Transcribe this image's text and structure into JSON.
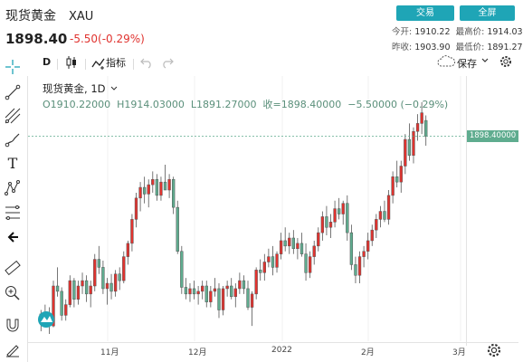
{
  "header": {
    "name": "现货黄金",
    "symbol": "XAU",
    "price": "1898.40",
    "change": "-5.50(-0.29%)",
    "trade_button": "交易",
    "fullscreen_button": "全屏",
    "stats": {
      "open_label": "今开:",
      "open_value": "1910.22",
      "high_label": "最高价:",
      "high_value": "1914.03",
      "prev_close_label": "昨收:",
      "prev_close_value": "1903.90",
      "low_label": "最低价:",
      "low_value": "1891.27"
    }
  },
  "toolbar": {
    "interval": "D",
    "indicators": "指标",
    "save": "保存"
  },
  "legend": {
    "symbol": "现货黄金",
    "interval": "1D",
    "open": "O1910.22000",
    "high": "H1914.03000",
    "low": "L1891.27000",
    "close": "收=1898.40000",
    "change": "−5.50000 (−0.29%)"
  },
  "price_tag": "1898.40000",
  "x_labels": [
    "11月",
    "12月",
    "2022",
    "2月",
    "3月"
  ],
  "colors": {
    "up": "#e0332f",
    "down": "#5fac8f",
    "accent": "#1fa5b6"
  },
  "chart_data": {
    "type": "candlestick",
    "ylim": [
      1750,
      1930
    ],
    "current_close": 1898.4,
    "candles": [
      [
        1760,
        1768,
        1752,
        1765
      ],
      [
        1765,
        1772,
        1758,
        1762
      ],
      [
        1762,
        1770,
        1750,
        1756
      ],
      [
        1756,
        1790,
        1755,
        1786
      ],
      [
        1786,
        1800,
        1778,
        1782
      ],
      [
        1782,
        1785,
        1760,
        1764
      ],
      [
        1764,
        1776,
        1760,
        1772
      ],
      [
        1772,
        1794,
        1770,
        1790
      ],
      [
        1790,
        1792,
        1770,
        1776
      ],
      [
        1776,
        1790,
        1772,
        1786
      ],
      [
        1786,
        1796,
        1780,
        1790
      ],
      [
        1790,
        1794,
        1774,
        1780
      ],
      [
        1780,
        1790,
        1770,
        1786
      ],
      [
        1786,
        1810,
        1782,
        1806
      ],
      [
        1806,
        1816,
        1795,
        1800
      ],
      [
        1800,
        1805,
        1780,
        1784
      ],
      [
        1784,
        1792,
        1772,
        1788
      ],
      [
        1788,
        1795,
        1776,
        1782
      ],
      [
        1782,
        1798,
        1778,
        1795
      ],
      [
        1795,
        1800,
        1783,
        1790
      ],
      [
        1790,
        1812,
        1788,
        1808
      ],
      [
        1808,
        1820,
        1802,
        1818
      ],
      [
        1818,
        1840,
        1812,
        1836
      ],
      [
        1836,
        1856,
        1830,
        1852
      ],
      [
        1852,
        1864,
        1842,
        1860
      ],
      [
        1860,
        1868,
        1848,
        1855
      ],
      [
        1855,
        1866,
        1845,
        1862
      ],
      [
        1862,
        1872,
        1856,
        1866
      ],
      [
        1866,
        1870,
        1850,
        1854
      ],
      [
        1854,
        1868,
        1850,
        1864
      ],
      [
        1864,
        1877,
        1858,
        1858
      ],
      [
        1858,
        1870,
        1852,
        1866
      ],
      [
        1866,
        1868,
        1840,
        1845
      ],
      [
        1845,
        1850,
        1810,
        1812
      ],
      [
        1812,
        1816,
        1780,
        1785
      ],
      [
        1785,
        1792,
        1776,
        1780
      ],
      [
        1780,
        1788,
        1774,
        1784
      ],
      [
        1784,
        1790,
        1776,
        1780
      ],
      [
        1780,
        1786,
        1772,
        1782
      ],
      [
        1782,
        1790,
        1776,
        1786
      ],
      [
        1786,
        1790,
        1770,
        1774
      ],
      [
        1774,
        1786,
        1770,
        1782
      ],
      [
        1782,
        1792,
        1778,
        1784
      ],
      [
        1784,
        1788,
        1762,
        1768
      ],
      [
        1768,
        1786,
        1764,
        1784
      ],
      [
        1784,
        1790,
        1778,
        1786
      ],
      [
        1786,
        1792,
        1776,
        1778
      ],
      [
        1778,
        1788,
        1770,
        1784
      ],
      [
        1784,
        1796,
        1780,
        1790
      ],
      [
        1790,
        1794,
        1780,
        1784
      ],
      [
        1784,
        1790,
        1768,
        1770
      ],
      [
        1770,
        1782,
        1756,
        1780
      ],
      [
        1780,
        1800,
        1776,
        1798
      ],
      [
        1798,
        1806,
        1790,
        1796
      ],
      [
        1796,
        1810,
        1790,
        1804
      ],
      [
        1804,
        1814,
        1800,
        1808
      ],
      [
        1808,
        1816,
        1794,
        1800
      ],
      [
        1800,
        1812,
        1796,
        1810
      ],
      [
        1810,
        1826,
        1806,
        1820
      ],
      [
        1820,
        1830,
        1812,
        1816
      ],
      [
        1816,
        1826,
        1810,
        1822
      ],
      [
        1822,
        1828,
        1810,
        1814
      ],
      [
        1814,
        1822,
        1806,
        1818
      ],
      [
        1818,
        1826,
        1808,
        1810
      ],
      [
        1810,
        1818,
        1790,
        1796
      ],
      [
        1796,
        1812,
        1792,
        1808
      ],
      [
        1808,
        1820,
        1802,
        1816
      ],
      [
        1816,
        1830,
        1812,
        1826
      ],
      [
        1826,
        1842,
        1820,
        1838
      ],
      [
        1838,
        1846,
        1824,
        1830
      ],
      [
        1830,
        1840,
        1822,
        1834
      ],
      [
        1834,
        1850,
        1830,
        1844
      ],
      [
        1844,
        1852,
        1836,
        1840
      ],
      [
        1840,
        1850,
        1832,
        1848
      ],
      [
        1848,
        1854,
        1820,
        1826
      ],
      [
        1826,
        1832,
        1798,
        1802
      ],
      [
        1802,
        1808,
        1788,
        1794
      ],
      [
        1794,
        1812,
        1788,
        1808
      ],
      [
        1808,
        1816,
        1800,
        1812
      ],
      [
        1812,
        1826,
        1806,
        1820
      ],
      [
        1820,
        1832,
        1816,
        1828
      ],
      [
        1828,
        1840,
        1822,
        1836
      ],
      [
        1836,
        1846,
        1830,
        1842
      ],
      [
        1842,
        1850,
        1834,
        1836
      ],
      [
        1836,
        1858,
        1832,
        1854
      ],
      [
        1854,
        1872,
        1848,
        1868
      ],
      [
        1868,
        1880,
        1860,
        1864
      ],
      [
        1864,
        1880,
        1856,
        1876
      ],
      [
        1876,
        1900,
        1870,
        1896
      ],
      [
        1896,
        1908,
        1880,
        1884
      ],
      [
        1884,
        1905,
        1878,
        1902
      ],
      [
        1902,
        1915,
        1895,
        1908
      ],
      [
        1908,
        1924,
        1900,
        1916
      ],
      [
        1910.22,
        1914.03,
        1891.27,
        1898.4
      ]
    ]
  }
}
